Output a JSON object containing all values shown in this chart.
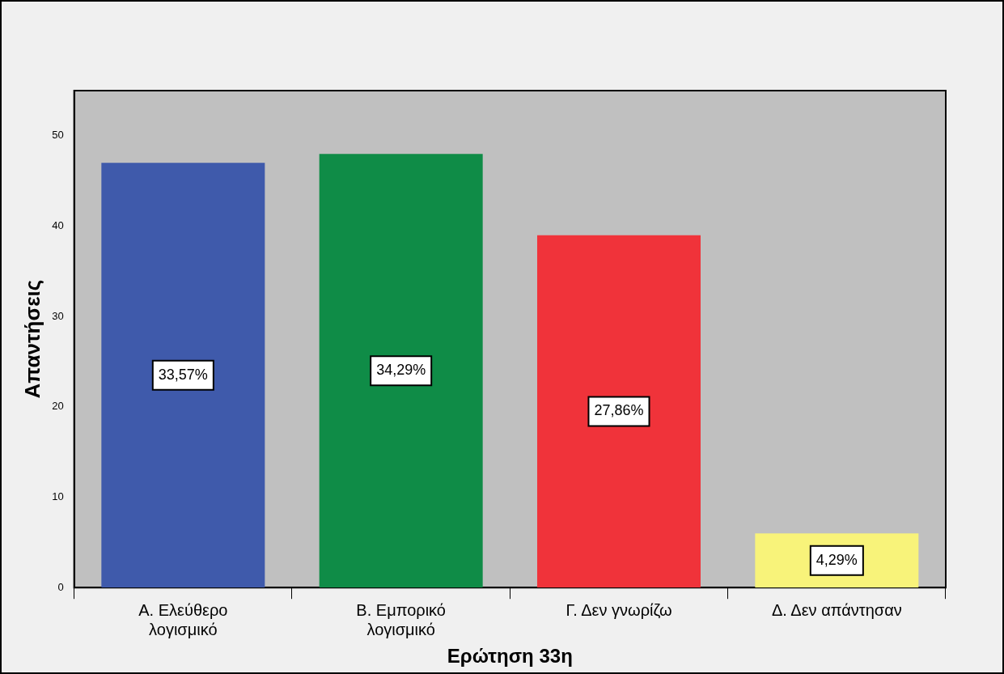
{
  "chart_data": {
    "type": "bar",
    "xlabel": "Ερώτηση 33η",
    "ylabel": "Απαντήσεις",
    "categories": [
      "Α. Ελεύθερο λογισμικό",
      "Β. Εμπορικό λογισμικό",
      "Γ. Δεν γνωρίζω",
      "Δ. Δεν απάντησαν"
    ],
    "values": [
      47,
      48,
      39,
      6
    ],
    "colors": [
      "#3f5aab",
      "#0f8c47",
      "#f0333a",
      "#f8f37a"
    ],
    "annotations": [
      "33,57%",
      "34,29%",
      "27,86%",
      "4,29%"
    ],
    "ylim": [
      0,
      55
    ],
    "yticks": [
      0,
      10,
      20,
      30,
      40,
      50
    ],
    "grid": false,
    "legend": false
  }
}
